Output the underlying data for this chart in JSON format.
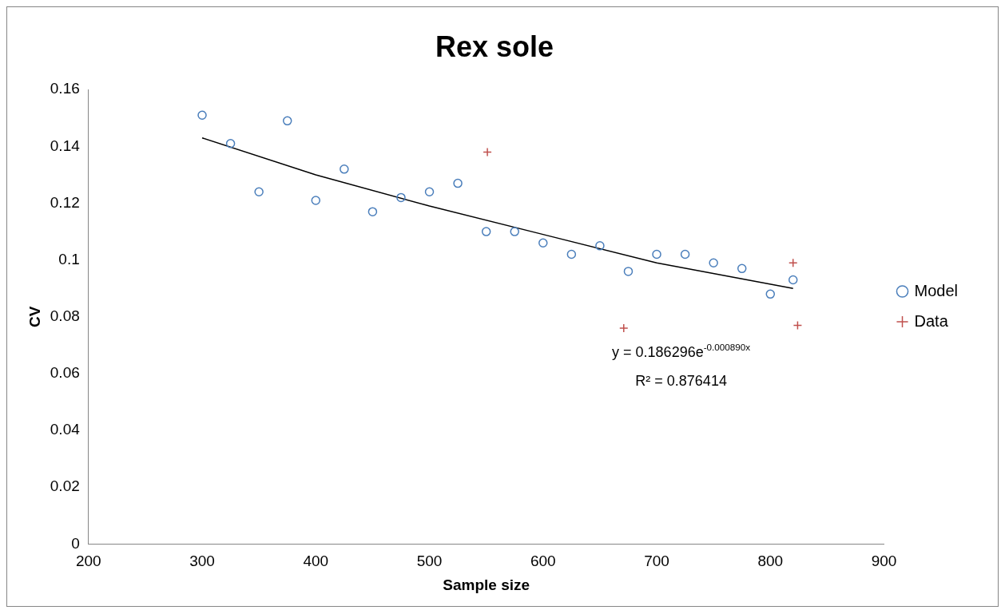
{
  "chart_data": {
    "type": "scatter",
    "title": "Rex sole",
    "xlabel": "Sample size",
    "ylabel": "CV",
    "xlim": [
      200,
      900
    ],
    "xticks": [
      200,
      300,
      400,
      500,
      600,
      700,
      800,
      900
    ],
    "ylim": [
      0,
      0.16
    ],
    "yticks": [
      0,
      0.02,
      0.04,
      0.06,
      0.08,
      0.1,
      0.12,
      0.14,
      0.16
    ],
    "grid": false,
    "legend": "right",
    "series": [
      {
        "name": "Model",
        "color": "#4a7ebb",
        "marker": "circle",
        "x": [
          300,
          325,
          350,
          375,
          400,
          425,
          450,
          475,
          500,
          525,
          550,
          575,
          600,
          625,
          650,
          675,
          700,
          725,
          750,
          775,
          800,
          820
        ],
        "values": [
          0.151,
          0.141,
          0.124,
          0.149,
          0.121,
          0.132,
          0.117,
          0.122,
          0.124,
          0.127,
          0.11,
          0.11,
          0.106,
          0.102,
          0.105,
          0.096,
          0.102,
          0.102,
          0.099,
          0.097,
          0.088,
          0.093
        ]
      },
      {
        "name": "Data",
        "color": "#c0504d",
        "marker": "cross",
        "x": [
          551,
          671,
          820,
          824
        ],
        "values": [
          0.138,
          0.076,
          0.099,
          0.077
        ]
      },
      {
        "type": "line",
        "color": "#000000",
        "marker": "none",
        "line_style": "solid",
        "x": [
          300,
          400,
          500,
          600,
          700,
          820
        ],
        "values": [
          0.143,
          0.13,
          0.119,
          0.109,
          0.099,
          0.09
        ]
      }
    ],
    "annotations": [
      "y = 0.186296e$^{-0.000890x}$",
      "R² = 0.876414"
    ]
  }
}
